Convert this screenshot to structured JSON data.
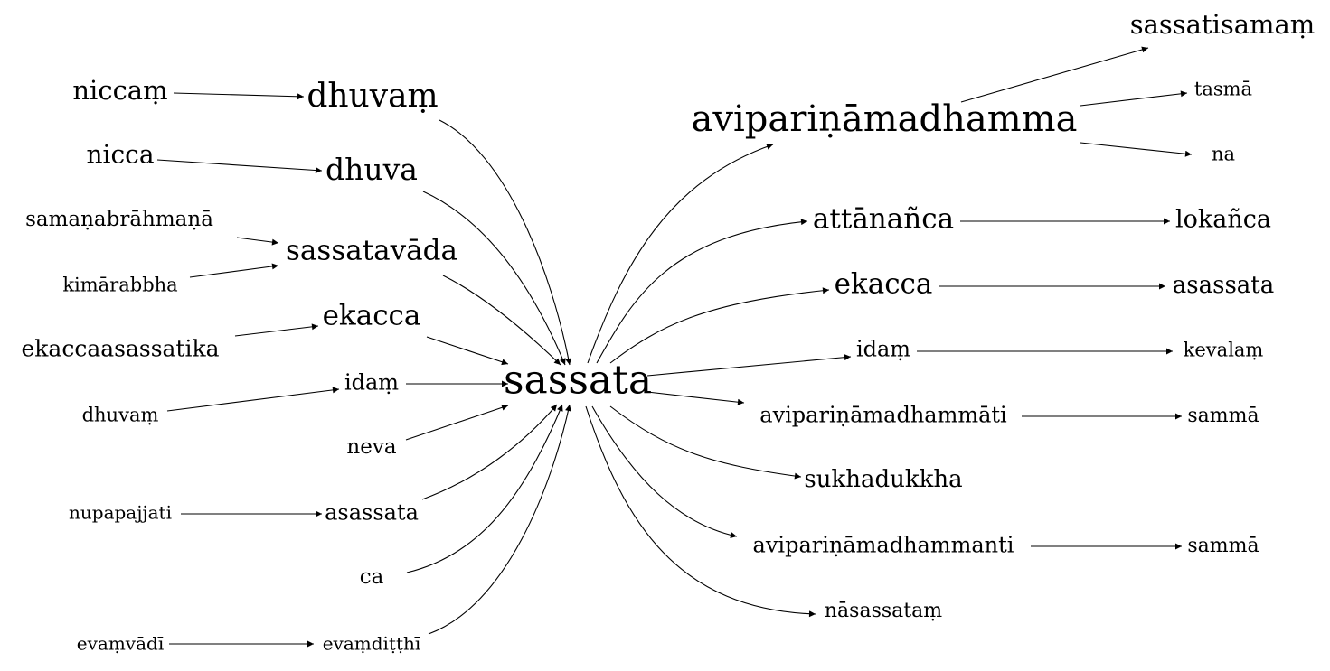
{
  "graph": {
    "center": "sassata",
    "incoming": [
      {
        "from": "niccaṃ",
        "to": "dhuvaṃ"
      },
      {
        "from": "nicca",
        "to": "dhuva"
      },
      {
        "from": "samaṇabrāhmaṇā",
        "to": "sassatavāda"
      },
      {
        "from": "kimārabbha",
        "to": "sassatavāda"
      },
      {
        "from": "ekaccaasassatika",
        "to": "ekacca"
      },
      {
        "from": "dhuvaṃ",
        "to": "idaṃ"
      },
      {
        "from": "nupapajjati",
        "to": "asassata"
      },
      {
        "from": "evaṃvādī",
        "to": "evaṃdiṭṭhī"
      }
    ],
    "incoming_hubs": [
      "dhuvaṃ",
      "dhuva",
      "sassatavāda",
      "ekacca",
      "idaṃ",
      "neva",
      "asassata",
      "ca",
      "evaṃdiṭṭhī"
    ],
    "outgoing_hubs": [
      "avipariṇāmadhamma",
      "attānañca",
      "ekacca",
      "idaṃ",
      "avipariṇāmadhammāti",
      "sukhadukkha",
      "avipariṇāmadhammanti",
      "nāsassataṃ"
    ],
    "outgoing": [
      {
        "from": "avipariṇāmadhamma",
        "to": "sassatisamaṃ"
      },
      {
        "from": "avipariṇāmadhamma",
        "to": "tasmā"
      },
      {
        "from": "avipariṇāmadhamma",
        "to": "na"
      },
      {
        "from": "attānañca",
        "to": "lokañca"
      },
      {
        "from": "ekacca",
        "to": "asassata"
      },
      {
        "from": "idaṃ",
        "to": "kevalaṃ"
      },
      {
        "from": "avipariṇāmadhammāti",
        "to": "sammā"
      },
      {
        "from": "avipariṇāmadhammanti",
        "to": "sammā"
      }
    ]
  }
}
